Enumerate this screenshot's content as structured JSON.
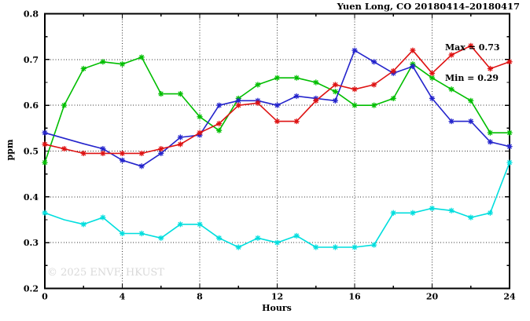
{
  "watermark": "© 2025 ENVF, HKUST",
  "chart_data": {
    "type": "line",
    "title": "Yuen Long, CO 20180414–20180417",
    "xlabel": "Hours",
    "ylabel": "ppm",
    "xlim": [
      0,
      24
    ],
    "ylim": [
      0.2,
      0.8
    ],
    "xticks_major": [
      0,
      4,
      8,
      12,
      16,
      20,
      24
    ],
    "xticks_minor": [
      2,
      6,
      10,
      14,
      18,
      22
    ],
    "yticks_major": [
      0.2,
      0.3,
      0.4,
      0.5,
      0.6,
      0.7,
      0.8
    ],
    "yticks_minor": [
      0.25,
      0.35,
      0.45,
      0.55,
      0.65,
      0.75
    ],
    "grid_x": [
      4,
      8,
      12,
      16,
      20
    ],
    "grid_y": [
      0.3,
      0.4,
      0.5,
      0.6,
      0.7
    ],
    "grid": "dotted",
    "legend_position": "none",
    "marker": "asterisk",
    "annotations": [
      "Max = 0.73",
      "Min = 0.29"
    ],
    "x": [
      0,
      1,
      2,
      3,
      4,
      5,
      6,
      7,
      8,
      9,
      10,
      11,
      12,
      13,
      14,
      15,
      16,
      17,
      18,
      19,
      20,
      21,
      22,
      23,
      24
    ],
    "series": [
      {
        "name": "green",
        "color": "#00BE00",
        "values": [
          0.475,
          0.6,
          0.68,
          0.695,
          0.69,
          0.705,
          0.625,
          0.625,
          0.575,
          0.545,
          0.615,
          0.645,
          0.66,
          0.66,
          0.65,
          0.63,
          0.6,
          0.6,
          0.615,
          0.69,
          0.66,
          0.635,
          0.61,
          0.54,
          0.54
        ],
        "no_marker_x": []
      },
      {
        "name": "blue",
        "color": "#2424CC",
        "values": [
          0.54,
          0.528,
          0.516,
          0.505,
          0.48,
          0.467,
          0.495,
          0.53,
          0.535,
          0.6,
          0.61,
          0.61,
          0.6,
          0.62,
          0.615,
          0.61,
          0.72,
          0.695,
          0.67,
          0.685,
          0.615,
          0.565,
          0.565,
          0.52,
          0.51
        ],
        "no_marker_x": [
          1,
          2
        ]
      },
      {
        "name": "red",
        "color": "#DE1212",
        "values": [
          0.515,
          0.505,
          0.495,
          0.495,
          0.495,
          0.495,
          0.505,
          0.515,
          0.54,
          0.56,
          0.6,
          0.605,
          0.565,
          0.565,
          0.61,
          0.645,
          0.635,
          0.645,
          0.675,
          0.72,
          0.67,
          0.71,
          0.73,
          0.68,
          0.695
        ],
        "no_marker_x": []
      },
      {
        "name": "cyan",
        "color": "#00DEDE",
        "values": [
          0.365,
          0.35,
          0.34,
          0.355,
          0.32,
          0.32,
          0.31,
          0.34,
          0.34,
          0.31,
          0.29,
          0.31,
          0.3,
          0.315,
          0.29,
          0.29,
          0.29,
          0.295,
          0.365,
          0.365,
          0.375,
          0.37,
          0.355,
          0.365,
          0.475
        ],
        "no_marker_x": [
          1
        ]
      }
    ]
  }
}
